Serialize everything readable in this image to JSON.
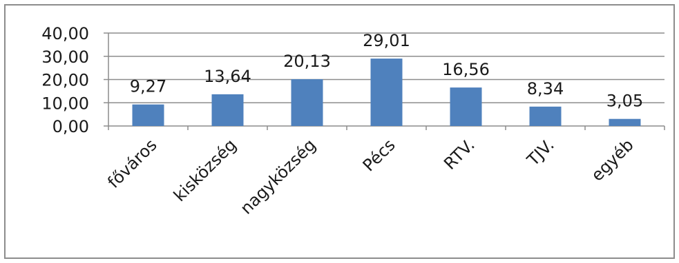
{
  "chart_data": {
    "type": "bar",
    "categories": [
      "főváros",
      "kisközség",
      "nagyközség",
      "Pécs",
      "RTV.",
      "TJV.",
      "egyéb"
    ],
    "values": [
      9.27,
      13.64,
      20.13,
      29.01,
      16.56,
      8.34,
      3.05
    ],
    "value_labels": [
      "9,27",
      "13,64",
      "20,13",
      "29,01",
      "16,56",
      "8,34",
      "3,05"
    ],
    "yticks": [
      "0,00",
      "10,00",
      "20,00",
      "30,00",
      "40,00"
    ],
    "ytick_values": [
      0,
      10,
      20,
      30,
      40
    ],
    "ylim": [
      0,
      40
    ],
    "grid": true,
    "legend": "none",
    "colors": {
      "bar": "#4f81bd",
      "grid": "#8c8c8c",
      "axis": "#8c8c8c",
      "text": "#1a1a1a"
    }
  }
}
